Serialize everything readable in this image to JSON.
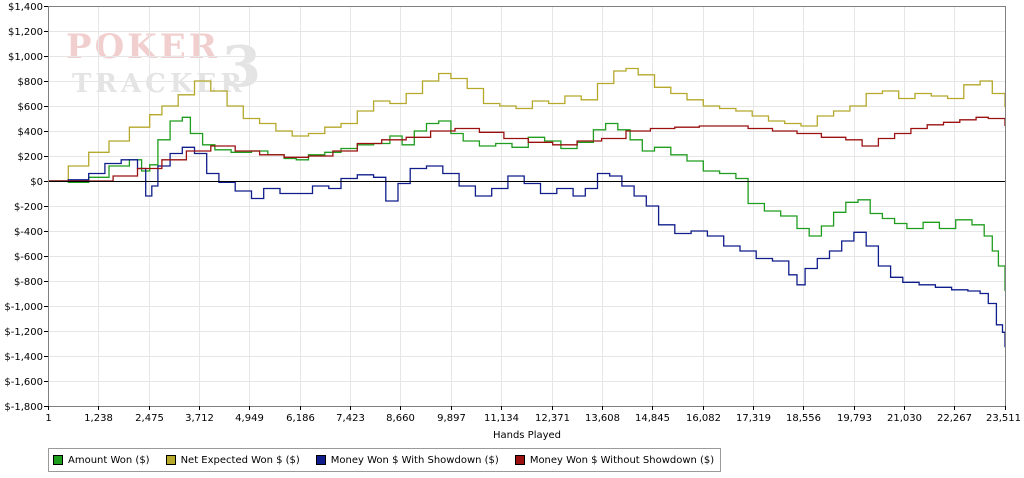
{
  "chart_data": {
    "type": "line",
    "watermark": {
      "line1": "POKER",
      "line2": "TRACKER",
      "mark": "3"
    },
    "xlabel": "Hands Played",
    "ylabel": "",
    "xlim": [
      1,
      23511
    ],
    "ylim": [
      -1800,
      1400
    ],
    "x_ticks": [
      1,
      1238,
      2475,
      3712,
      4949,
      6186,
      7423,
      8660,
      9897,
      11134,
      12371,
      13608,
      14845,
      16082,
      17319,
      18556,
      19793,
      21030,
      22267,
      23511
    ],
    "x_tick_labels": [
      "1",
      "1,238",
      "2,475",
      "3,712",
      "4,949",
      "6,186",
      "7,423",
      "8,660",
      "9,897",
      "11,134",
      "12,371",
      "13,608",
      "14,845",
      "16,082",
      "17,319",
      "18,556",
      "19,793",
      "21,030",
      "22,267",
      "23,511"
    ],
    "y_ticks": [
      1400,
      1200,
      1000,
      800,
      600,
      400,
      200,
      0,
      -200,
      -400,
      -600,
      -800,
      -1000,
      -1200,
      -1400,
      -1600,
      -1800
    ],
    "y_tick_labels": [
      "$1,400",
      "$1,200",
      "$1,000",
      "$800",
      "$600",
      "$400",
      "$200",
      "$0",
      "$-200",
      "$-400",
      "$-600",
      "$-800",
      "$-1,000",
      "$-1,200",
      "$-1,400",
      "$-1,600",
      "$-1,800"
    ],
    "grid": true,
    "legend_position": "bottom",
    "series": [
      {
        "name": "Amount Won ($)",
        "color": "#1f9d1f",
        "x": [
          1,
          500,
          1000,
          1500,
          2000,
          2300,
          2500,
          2700,
          3000,
          3300,
          3500,
          3800,
          4100,
          4500,
          5000,
          5400,
          5800,
          6100,
          6400,
          6800,
          7200,
          7600,
          8000,
          8400,
          8700,
          9000,
          9300,
          9600,
          9900,
          10200,
          10600,
          11000,
          11400,
          11800,
          12200,
          12600,
          13000,
          13400,
          13700,
          14000,
          14300,
          14600,
          14900,
          15300,
          15700,
          16100,
          16500,
          16900,
          17200,
          17600,
          18000,
          18400,
          18700,
          19000,
          19300,
          19600,
          19900,
          20200,
          20500,
          20800,
          21100,
          21500,
          21900,
          22300,
          22700,
          23000,
          23200,
          23350,
          23511
        ],
        "values": [
          0,
          -10,
          30,
          120,
          170,
          80,
          130,
          330,
          480,
          510,
          380,
          290,
          250,
          230,
          240,
          210,
          180,
          170,
          210,
          230,
          260,
          290,
          300,
          360,
          290,
          400,
          460,
          480,
          380,
          320,
          280,
          300,
          270,
          350,
          320,
          260,
          310,
          410,
          460,
          410,
          330,
          240,
          270,
          210,
          160,
          80,
          60,
          20,
          -180,
          -240,
          -280,
          -380,
          -440,
          -360,
          -250,
          -170,
          -150,
          -260,
          -300,
          -340,
          -380,
          -330,
          -380,
          -310,
          -350,
          -440,
          -560,
          -680,
          -880
        ]
      },
      {
        "name": "Net Expected Won $ ($)",
        "color": "#b5a82a",
        "x": [
          1,
          500,
          1000,
          1500,
          2000,
          2500,
          2800,
          3200,
          3600,
          4000,
          4400,
          4800,
          5200,
          5600,
          6000,
          6400,
          6800,
          7200,
          7600,
          8000,
          8400,
          8800,
          9200,
          9600,
          9900,
          10300,
          10700,
          11100,
          11500,
          11900,
          12300,
          12700,
          13100,
          13500,
          13900,
          14200,
          14500,
          14900,
          15300,
          15700,
          16100,
          16500,
          16900,
          17300,
          17700,
          18100,
          18500,
          18900,
          19300,
          19700,
          20100,
          20500,
          20900,
          21300,
          21700,
          22100,
          22500,
          22900,
          23200,
          23511
        ],
        "values": [
          0,
          120,
          230,
          320,
          430,
          530,
          600,
          690,
          800,
          720,
          600,
          500,
          460,
          400,
          360,
          380,
          430,
          460,
          560,
          640,
          620,
          700,
          800,
          860,
          820,
          740,
          620,
          600,
          580,
          640,
          620,
          680,
          650,
          780,
          880,
          900,
          850,
          750,
          700,
          650,
          600,
          580,
          560,
          520,
          480,
          460,
          440,
          520,
          560,
          600,
          700,
          720,
          660,
          700,
          680,
          660,
          770,
          800,
          700,
          590
        ]
      },
      {
        "name": "Money Won $ With Showdown ($)",
        "color": "#101e8c",
        "x": [
          1,
          500,
          1000,
          1400,
          1800,
          2200,
          2400,
          2550,
          2700,
          3000,
          3300,
          3600,
          3900,
          4200,
          4600,
          5000,
          5300,
          5700,
          6100,
          6500,
          6900,
          7200,
          7600,
          8000,
          8300,
          8600,
          8900,
          9300,
          9700,
          10100,
          10500,
          10900,
          11300,
          11700,
          12100,
          12500,
          12900,
          13200,
          13500,
          13800,
          14100,
          14400,
          14700,
          15000,
          15400,
          15800,
          16200,
          16600,
          17000,
          17400,
          17800,
          18200,
          18400,
          18600,
          18900,
          19200,
          19500,
          19800,
          20100,
          20400,
          20700,
          21000,
          21400,
          21800,
          22200,
          22600,
          22900,
          23100,
          23300,
          23450,
          23511
        ],
        "values": [
          0,
          10,
          60,
          140,
          170,
          100,
          -120,
          -40,
          120,
          220,
          270,
          220,
          60,
          -10,
          -80,
          -140,
          -60,
          -100,
          -100,
          -40,
          -60,
          20,
          50,
          30,
          -160,
          -20,
          100,
          120,
          60,
          -40,
          -120,
          -60,
          40,
          -20,
          -100,
          -60,
          -120,
          -60,
          60,
          40,
          -40,
          -120,
          -200,
          -350,
          -420,
          -400,
          -440,
          -520,
          -560,
          -620,
          -640,
          -750,
          -830,
          -700,
          -620,
          -560,
          -480,
          -410,
          -520,
          -680,
          -770,
          -810,
          -830,
          -850,
          -870,
          -880,
          -900,
          -980,
          -1150,
          -1210,
          -1330
        ]
      },
      {
        "name": "Money Won $ Without Showdown ($)",
        "color": "#9b1111",
        "x": [
          1,
          800,
          1600,
          2200,
          2800,
          3400,
          4000,
          4600,
          5200,
          5800,
          6400,
          7000,
          7600,
          8200,
          8800,
          9400,
          10000,
          10600,
          11200,
          11800,
          12400,
          13000,
          13600,
          14200,
          14800,
          15400,
          16000,
          16600,
          17200,
          17800,
          18400,
          19000,
          19600,
          20000,
          20400,
          20800,
          21200,
          21600,
          22000,
          22400,
          22800,
          23100,
          23511
        ],
        "values": [
          0,
          0,
          40,
          100,
          170,
          240,
          280,
          240,
          210,
          190,
          200,
          240,
          300,
          330,
          350,
          400,
          420,
          390,
          340,
          310,
          290,
          320,
          340,
          400,
          420,
          430,
          440,
          440,
          420,
          400,
          380,
          350,
          330,
          280,
          340,
          380,
          420,
          450,
          470,
          490,
          510,
          500,
          440
        ]
      }
    ]
  }
}
